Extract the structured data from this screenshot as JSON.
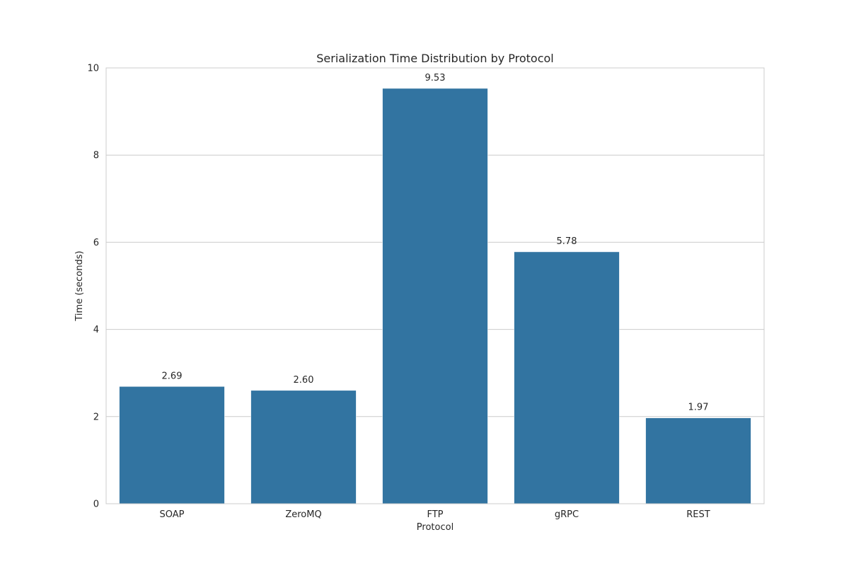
{
  "chart_data": {
    "type": "bar",
    "title": "Serialization Time Distribution by Protocol",
    "xlabel": "Protocol",
    "ylabel": "Time (seconds)",
    "categories": [
      "SOAP",
      "ZeroMQ",
      "FTP",
      "gRPC",
      "REST"
    ],
    "values": [
      2.69,
      2.6,
      9.53,
      5.78,
      1.97
    ],
    "value_labels": [
      "2.69",
      "2.60",
      "9.53",
      "5.78",
      "1.97"
    ],
    "ylim": [
      0,
      10
    ],
    "yticks": [
      0,
      2,
      4,
      6,
      8,
      10
    ],
    "grid": "horizontal",
    "colors": {
      "bar": "#3274a1",
      "grid": "#cccccc",
      "frame": "#cccccc",
      "text": "#262626"
    }
  }
}
